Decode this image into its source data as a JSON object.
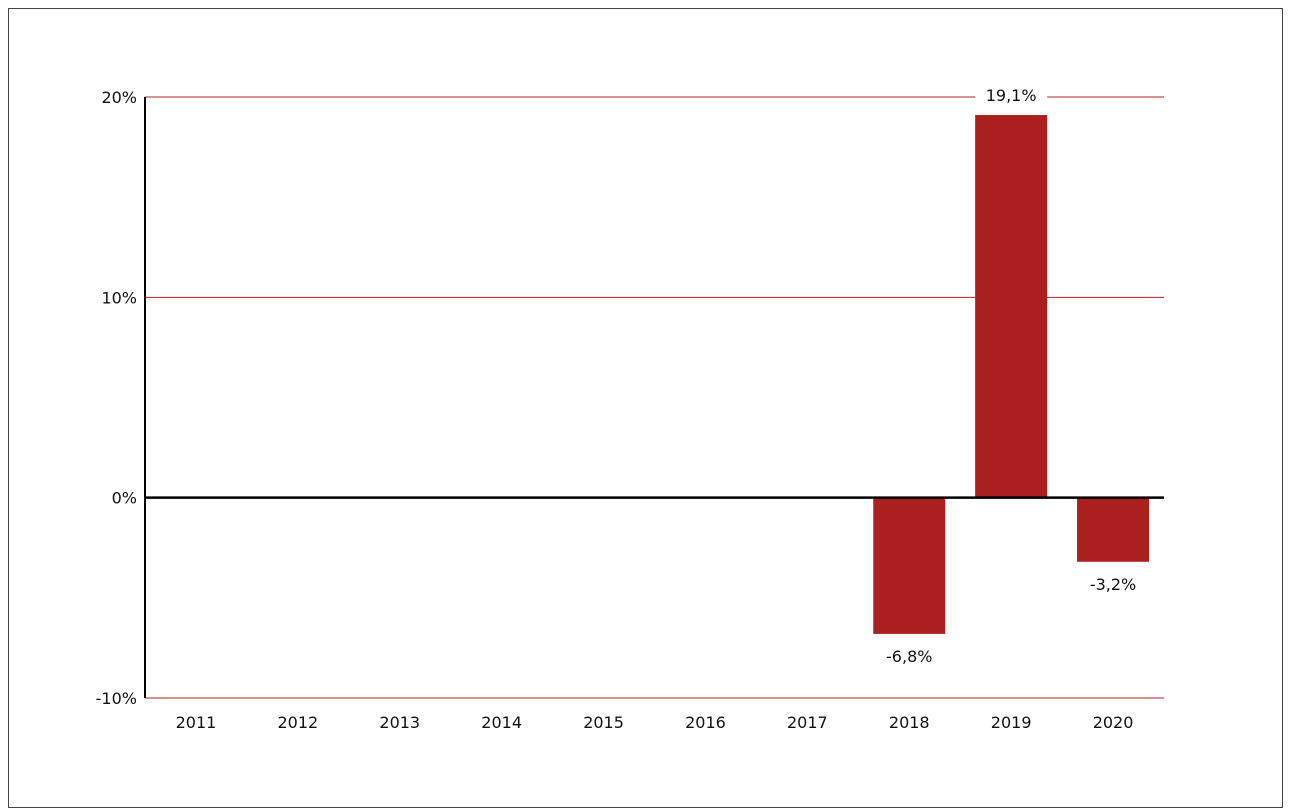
{
  "chart_data": {
    "type": "bar",
    "categories": [
      "2011",
      "2012",
      "2013",
      "2014",
      "2015",
      "2016",
      "2017",
      "2018",
      "2019",
      "2020"
    ],
    "series": [
      {
        "values": [
          null,
          null,
          null,
          null,
          null,
          null,
          null,
          -6.8,
          19.1,
          -3.2
        ]
      }
    ],
    "data_labels": [
      "",
      "",
      "",
      "",
      "",
      "",
      "",
      "-6,8%",
      "19,1%",
      "-3,2%"
    ],
    "yticks": [
      {
        "value": 20,
        "label": "20%"
      },
      {
        "value": 10,
        "label": "10%"
      },
      {
        "value": 0,
        "label": "0%"
      },
      {
        "value": -10,
        "label": "-10%"
      }
    ],
    "ylim": [
      -10,
      20
    ],
    "grid": true,
    "colors": {
      "bar": "#ab1f1e",
      "grid": "#b22222",
      "axis": "#000000"
    }
  }
}
